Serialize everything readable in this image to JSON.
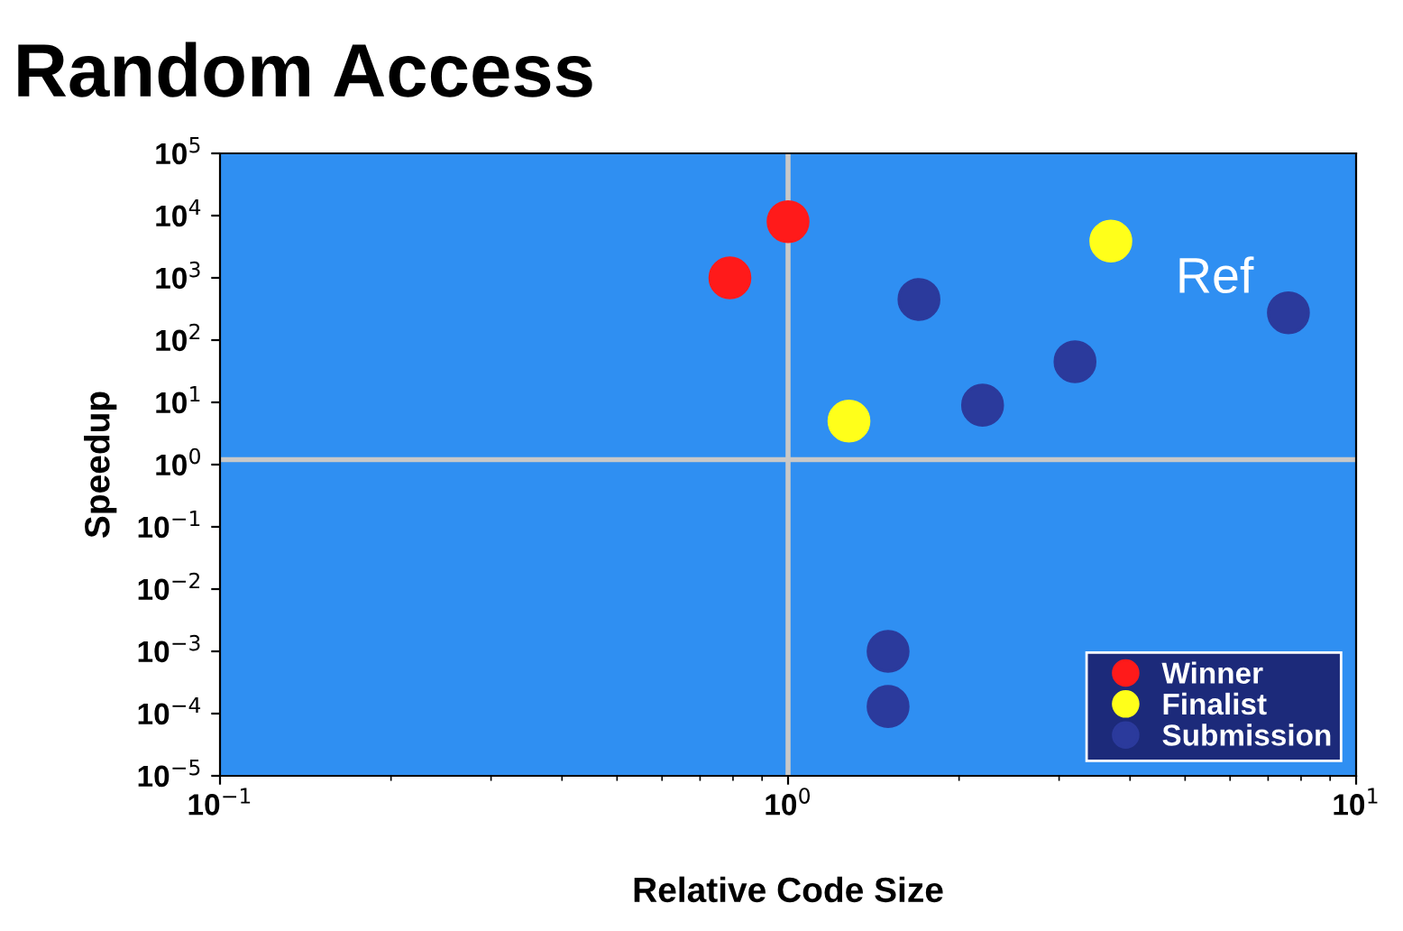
{
  "chart_data": {
    "type": "scatter",
    "title": "Random Access",
    "xlabel": "Relative Code Size",
    "ylabel": "Speedup",
    "log": "xy",
    "marker": "circle",
    "legend": "bottom right",
    "grid": false,
    "xlim": [
      0.1,
      10
    ],
    "xticks": [
      {
        "value": 0.1,
        "label": "10$^{−1}$"
      },
      {
        "value": 1,
        "label": "10$^{0}$"
      },
      {
        "value": 10,
        "label": "10$^{1}$"
      }
    ],
    "ylim": [
      1e-05,
      100000
    ],
    "yticks": [
      {
        "value": 1e-05,
        "label": "10$^{−5}$"
      },
      {
        "value": 0.0001,
        "label": "10$^{−4}$"
      },
      {
        "value": 0.001,
        "label": "10$^{−3}$"
      },
      {
        "value": 0.01,
        "label": "10$^{−2}$"
      },
      {
        "value": 0.1,
        "label": "10$^{−1}$"
      },
      {
        "value": 1,
        "label": "10$^{0}$"
      },
      {
        "value": 10,
        "label": "10$^{1}$"
      },
      {
        "value": 100,
        "label": "10$^{2}$"
      },
      {
        "value": 1000,
        "label": "10$^{3}$"
      },
      {
        "value": 10000,
        "label": "10$^{4}$"
      },
      {
        "value": 100000,
        "label": "10$^{5}$"
      }
    ],
    "series": [
      {
        "name": "Winner",
        "color": "#ff1a1a",
        "x": [
          1.0,
          0.79
        ],
        "values": [
          8000,
          1000
        ]
      },
      {
        "name": "Finalist",
        "color": "#ffff1a",
        "x": [
          3.7,
          1.28
        ],
        "values": [
          3900,
          5
        ]
      },
      {
        "name": "Submission",
        "color": "#2b3a9c",
        "x": [
          1.7,
          7.6,
          3.2,
          2.2,
          1.5,
          1.5
        ],
        "values": [
          450,
          275,
          45,
          9,
          0.001,
          0.00013
        ]
      }
    ],
    "ref_lines": [
      {
        "axis": "x",
        "value": 1,
        "color": "#c8c8c8"
      },
      {
        "axis": "y",
        "value": 1.2,
        "color": "#c8c8c8"
      }
    ],
    "annotations": [
      {
        "text": "Ref",
        "x": 7.6,
        "y": 275
      }
    ]
  }
}
